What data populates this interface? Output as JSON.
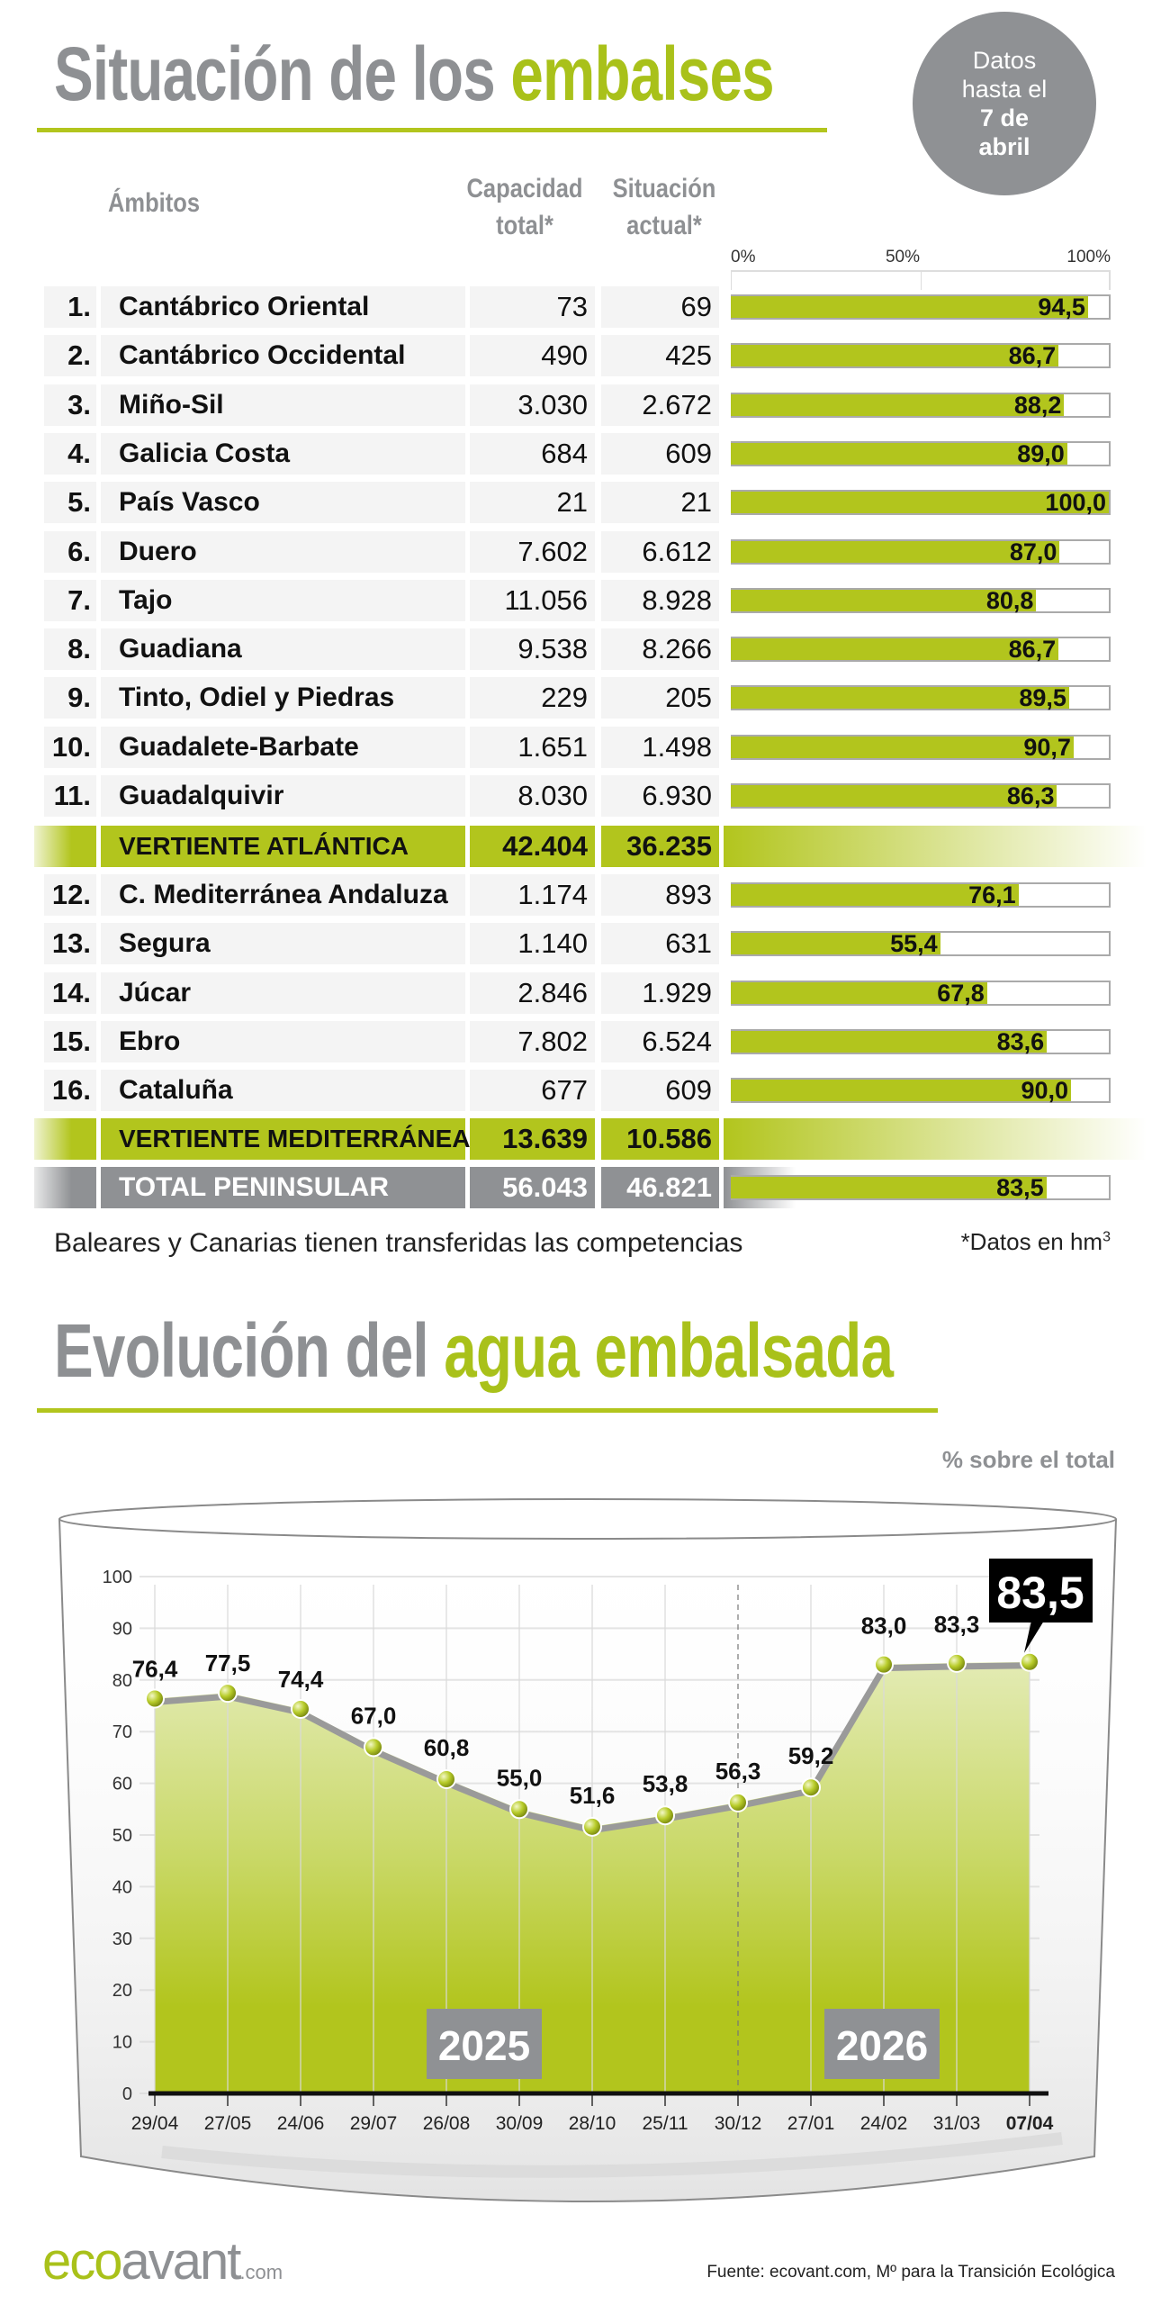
{
  "header": {
    "title_part1": "Situación de los",
    "title_part2": "embalses",
    "badge": {
      "line1": "Datos",
      "line2": "hasta el",
      "line3": "7 de",
      "line4": "abril"
    }
  },
  "table": {
    "columns": {
      "ambitos": "Ámbitos",
      "capacidad_1": "Capacidad",
      "capacidad_2": "total*",
      "situacion_1": "Situación",
      "situacion_2": "actual*"
    },
    "scale_ticks": [
      "0%",
      "50%",
      "100%"
    ],
    "rows": [
      {
        "num": "1.",
        "name": "Cantábrico Oriental",
        "capacidad": "73",
        "actual": "69",
        "pct": 94.5,
        "pct_label": "94,5"
      },
      {
        "num": "2.",
        "name": "Cantábrico Occidental",
        "capacidad": "490",
        "actual": "425",
        "pct": 86.7,
        "pct_label": "86,7"
      },
      {
        "num": "3.",
        "name": "Miño-Sil",
        "capacidad": "3.030",
        "actual": "2.672",
        "pct": 88.2,
        "pct_label": "88,2"
      },
      {
        "num": "4.",
        "name": "Galicia Costa",
        "capacidad": "684",
        "actual": "609",
        "pct": 89.0,
        "pct_label": "89,0"
      },
      {
        "num": "5.",
        "name": "País Vasco",
        "capacidad": "21",
        "actual": "21",
        "pct": 100.0,
        "pct_label": "100,0"
      },
      {
        "num": "6.",
        "name": "Duero",
        "capacidad": "7.602",
        "actual": "6.612",
        "pct": 87.0,
        "pct_label": "87,0"
      },
      {
        "num": "7.",
        "name": "Tajo",
        "capacidad": "11.056",
        "actual": "8.928",
        "pct": 80.8,
        "pct_label": "80,8"
      },
      {
        "num": "8.",
        "name": "Guadiana",
        "capacidad": "9.538",
        "actual": "8.266",
        "pct": 86.7,
        "pct_label": "86,7"
      },
      {
        "num": "9.",
        "name": "Tinto, Odiel y Piedras",
        "capacidad": "229",
        "actual": "205",
        "pct": 89.5,
        "pct_label": "89,5"
      },
      {
        "num": "10.",
        "name": "Guadalete-Barbate",
        "capacidad": "1.651",
        "actual": "1.498",
        "pct": 90.7,
        "pct_label": "90,7"
      },
      {
        "num": "11.",
        "name": "Guadalquivir",
        "capacidad": "8.030",
        "actual": "6.930",
        "pct": 86.3,
        "pct_label": "86,3"
      },
      {
        "num": "12.",
        "name": "C. Mediterránea Andaluza",
        "capacidad": "1.174",
        "actual": "893",
        "pct": 76.1,
        "pct_label": "76,1"
      },
      {
        "num": "13.",
        "name": "Segura",
        "capacidad": "1.140",
        "actual": "631",
        "pct": 55.4,
        "pct_label": "55,4"
      },
      {
        "num": "14.",
        "name": "Júcar",
        "capacidad": "2.846",
        "actual": "1.929",
        "pct": 67.8,
        "pct_label": "67,8"
      },
      {
        "num": "15.",
        "name": "Ebro",
        "capacidad": "7.802",
        "actual": "6.524",
        "pct": 83.6,
        "pct_label": "83,6"
      },
      {
        "num": "16.",
        "name": "Cataluña",
        "capacidad": "677",
        "actual": "609",
        "pct": 90.0,
        "pct_label": "90,0"
      }
    ],
    "atlantica": {
      "name": "VERTIENTE ATLÁNTICA",
      "capacidad": "42.404",
      "actual": "36.235"
    },
    "mediterranea": {
      "name": "VERTIENTE MEDITERRÁNEA",
      "capacidad": "13.639",
      "actual": "10.586"
    },
    "total": {
      "name": "TOTAL PENINSULAR",
      "capacidad": "56.043",
      "actual": "46.821",
      "pct": 83.5,
      "pct_label": "83,5"
    },
    "note_left": "Baleares y Canarias tienen transferidas las competencias",
    "note_right": "*Datos en hm",
    "note_right_sup": "3"
  },
  "evolution": {
    "title_part1": "Evolución del",
    "title_part2": "agua embalsada",
    "unit_label": "% sobre el total"
  },
  "chart_data": {
    "type": "area",
    "ylabel": "% sobre el total",
    "ylim": [
      0,
      100
    ],
    "yticks": [
      0,
      10,
      20,
      30,
      40,
      50,
      60,
      70,
      80,
      90,
      100
    ],
    "grid": true,
    "categories": [
      "29/04",
      "27/05",
      "24/06",
      "29/07",
      "26/08",
      "30/09",
      "28/10",
      "25/11",
      "30/12",
      "27/01",
      "24/02",
      "31/03",
      "07/04"
    ],
    "values": [
      76.4,
      77.5,
      74.4,
      67.0,
      60.8,
      55.0,
      51.6,
      53.8,
      56.3,
      59.2,
      83.0,
      83.3,
      83.5
    ],
    "value_labels": [
      "76,4",
      "77,5",
      "74,4",
      "67,0",
      "60,8",
      "55,0",
      "51,6",
      "53,8",
      "56,3",
      "59,2",
      "83,0",
      "83,3",
      "83,5"
    ],
    "year_labels": [
      {
        "label": "2025"
      },
      {
        "label": "2026"
      }
    ],
    "highlight_label": "83,5",
    "colors": {
      "fill": "#b2c51d",
      "line": "#9a9a9a",
      "highlight_box": "#000000"
    }
  },
  "footer": {
    "logo_eco": "eco",
    "logo_avant": "avant",
    "logo_com": ".com",
    "source": "Fuente: ecovant.com, Mº para la Transición Ecológica"
  }
}
